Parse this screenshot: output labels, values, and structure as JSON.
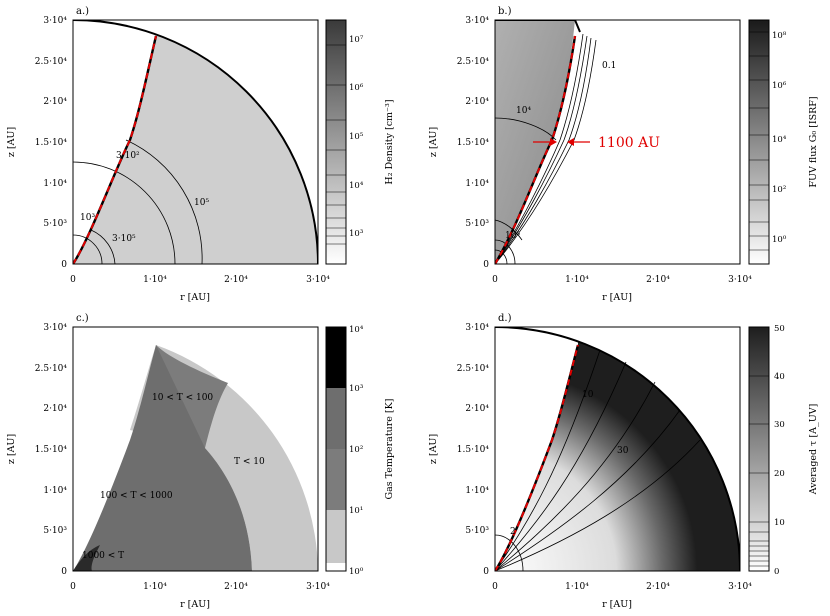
{
  "panels": [
    {
      "label": "a.)",
      "xlabel": "r [AU]",
      "ylabel": "z [AU]",
      "xticks": [
        "0",
        "1·10⁴",
        "2·10⁴",
        "3·10⁴"
      ],
      "yticks": [
        "0",
        "5·10³",
        "1·10⁴",
        "1.5·10⁴",
        "2·10⁴",
        "2.5·10⁴",
        "3·10⁴"
      ],
      "colorbar_label": "H₂ Density [cm⁻³]",
      "colorbar_ticks": [
        "10³",
        "10⁴",
        "10⁵",
        "10⁶",
        "10⁷"
      ],
      "annotations": [
        "3·10²",
        "10⁵",
        "10³",
        "3·10⁵"
      ]
    },
    {
      "label": "b.)",
      "xlabel": "r [AU]",
      "ylabel": "z [AU]",
      "xticks": [
        "0",
        "1·10⁴",
        "2·10⁴",
        "3·10⁴"
      ],
      "yticks": [
        "0",
        "5·10³",
        "1·10⁴",
        "1.5·10⁴",
        "2·10⁴",
        "2.5·10⁴",
        "3·10⁴"
      ],
      "colorbar_label": "FUV flux G₀ [ISRF]",
      "colorbar_ticks": [
        "10⁰",
        "10²",
        "10⁴",
        "10⁶",
        "10⁸"
      ],
      "annotations": [
        "0.1",
        "10⁴",
        "10⁵"
      ],
      "highlight": "1100 AU"
    },
    {
      "label": "c.)",
      "xlabel": "r [AU]",
      "ylabel": "z [AU]",
      "xticks": [
        "0",
        "1·10⁴",
        "2·10⁴",
        "3·10⁴"
      ],
      "yticks": [
        "0",
        "5·10³",
        "1·10⁴",
        "1.5·10⁴",
        "2·10⁴",
        "2.5·10⁴",
        "3·10⁴"
      ],
      "colorbar_label": "Gas Temperature [K]",
      "colorbar_ticks": [
        "10⁰",
        "10¹",
        "10²",
        "10³",
        "10⁴"
      ],
      "annotations": [
        "10 < T < 100",
        "T < 10",
        "100 < T < 1000",
        "1000 < T"
      ]
    },
    {
      "label": "d.)",
      "xlabel": "r [AU]",
      "ylabel": "z [AU]",
      "xticks": [
        "0",
        "1·10⁴",
        "2·10⁴",
        "3·10⁴"
      ],
      "yticks": [
        "0",
        "5·10³",
        "1·10⁴",
        "1.5·10⁴",
        "2·10⁴",
        "2.5·10⁴",
        "3·10⁴"
      ],
      "colorbar_label": "Averaged τ [A_UV]",
      "colorbar_ticks": [
        "0",
        "10",
        "20",
        "30",
        "40",
        "50"
      ],
      "annotations": [
        "10",
        "30",
        "2"
      ]
    }
  ],
  "chart_data": [
    {
      "type": "heatmap",
      "xlim": [
        0,
        30000
      ],
      "ylim": [
        0,
        30000
      ],
      "cavity_boundary": [
        [
          0,
          0
        ],
        [
          3000,
          6000
        ],
        [
          6000,
          13000
        ],
        [
          8500,
          21000
        ],
        [
          10200,
          29000
        ]
      ],
      "outer_radius": 30000,
      "colorbar_log_range": [
        2.4,
        7.4
      ],
      "contours": [
        {
          "label": "3·10²",
          "radius": 12500
        },
        {
          "label": "10⁵",
          "radius": 15800
        },
        {
          "label": "10³",
          "radius": 3500
        },
        {
          "label": "3·10⁵",
          "radius": 6500
        }
      ]
    },
    {
      "type": "heatmap",
      "xlim": [
        0,
        30000
      ],
      "ylim": [
        0,
        30000
      ],
      "cavity_boundary": [
        [
          0,
          0
        ],
        [
          3000,
          6000
        ],
        [
          6000,
          13000
        ],
        [
          8500,
          21000
        ],
        [
          10200,
          29000
        ]
      ],
      "colorbar_log_range": [
        -1,
        9
      ],
      "contours": [
        {
          "label": "0.1",
          "offset": 1100
        },
        {
          "label": "10⁴",
          "radius": 17500
        },
        {
          "label": "10⁵",
          "radius": 5500
        }
      ],
      "arrow_width_au": 1100
    },
    {
      "type": "heatmap",
      "xlim": [
        0,
        30000
      ],
      "ylim": [
        0,
        30000
      ],
      "colorbar_log_range": [
        0,
        4
      ],
      "regions": [
        {
          "label": "1000 < T",
          "color": "#2a2a2a"
        },
        {
          "label": "100 < T < 1000",
          "color": "#6e6e6e"
        },
        {
          "label": "10 < T < 100",
          "color": "#7c7c7c"
        },
        {
          "label": "T < 10",
          "color": "#c8c8c8"
        }
      ]
    },
    {
      "type": "heatmap",
      "xlim": [
        0,
        30000
      ],
      "ylim": [
        0,
        30000
      ],
      "colorbar_range": [
        0,
        50
      ],
      "contours": [
        {
          "label": "2",
          "value": 2
        },
        {
          "label": "10",
          "value": 10
        },
        {
          "label": "30",
          "value": 30
        }
      ]
    }
  ]
}
